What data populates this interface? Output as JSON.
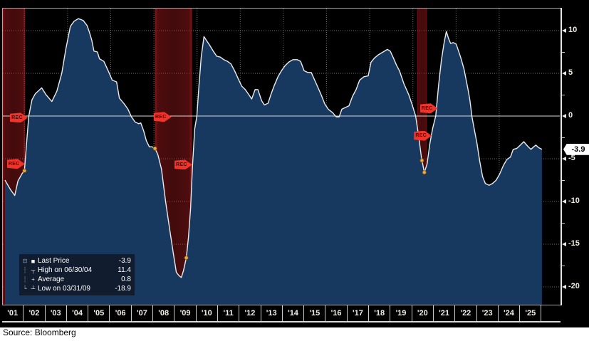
{
  "source_note": "Source: Bloomberg",
  "colors": {
    "background": "#000000",
    "area_fill": "#17395f",
    "price_line": "#ebebeb",
    "zero_line": "#d8d8d8",
    "grid_dotted": "#6f6f6f",
    "frame": "#a8a8a8",
    "axis_line": "#e6e6e6",
    "axis_text": "#f0ece2",
    "recession_band": "#b91e22",
    "event_flag": "#ef342b",
    "event_flag_text": "#4a0303",
    "event_dot": "#eda83e",
    "last_price_tag_bg": "#ffffff",
    "last_price_tag_text": "#000000",
    "legend_bg": "#111b2b",
    "legend_text": "#ffffff"
  },
  "legend": {
    "rows": [
      {
        "tree": "⊟",
        "icon": "square-swatch",
        "glyph": "■",
        "label": "Last Price",
        "value": "-3.9"
      },
      {
        "tree": "┊",
        "icon": "high-marker",
        "glyph": "┬",
        "label": "High on 06/30/04",
        "value": "11.4"
      },
      {
        "tree": "┊",
        "icon": "average-marker",
        "glyph": "+",
        "label": "Average",
        "value": "0.8"
      },
      {
        "tree": "┕",
        "icon": "low-marker",
        "glyph": "┴",
        "label": "Low on 03/31/09",
        "value": "-18.9"
      }
    ]
  },
  "y_axis": {
    "major_ticks": [
      {
        "label": "10",
        "value": 10
      },
      {
        "label": "5",
        "value": 5
      },
      {
        "label": "0",
        "value": 0
      },
      {
        "label": "-5",
        "value": -5
      },
      {
        "label": "-10",
        "value": -10
      },
      {
        "label": "-15",
        "value": -15
      },
      {
        "label": "-20",
        "value": -20
      }
    ],
    "minor_tick_values": [
      7.5,
      2.5,
      -2.5,
      -7.5,
      -12.5,
      -17.5
    ],
    "last_price_tag": "-3.9",
    "last_price_value": -3.9
  },
  "x_axis": {
    "labels": [
      "'01",
      "'02",
      "'03",
      "'04",
      "'05",
      "'06",
      "'07",
      "'08",
      "'09",
      "'10",
      "'11",
      "'12",
      "'13",
      "'14",
      "'15",
      "'16",
      "'17",
      "'18",
      "'19",
      "'20",
      "'21",
      "'22",
      "'23",
      "'24",
      "'25"
    ]
  },
  "chart_data": {
    "type": "area",
    "title": "",
    "x_unit": "year",
    "x_range": [
      2001,
      2026
    ],
    "y_range": [
      -22.2,
      12.7
    ],
    "grid": true,
    "zero_line": true,
    "legend_position": "bottom-left",
    "x": [
      2001.1,
      2001.35,
      2001.55,
      2001.7,
      2001.9,
      2002.0,
      2002.1,
      2002.2,
      2002.35,
      2002.5,
      2002.8,
      2003.0,
      2003.27,
      2003.5,
      2003.73,
      2003.93,
      2004.13,
      2004.3,
      2004.5,
      2004.72,
      2004.9,
      2005.0,
      2005.12,
      2005.22,
      2005.38,
      2005.48,
      2005.68,
      2005.88,
      2006.07,
      2006.27,
      2006.4,
      2006.63,
      2006.8,
      2006.96,
      2007.13,
      2007.29,
      2007.39,
      2007.52,
      2007.65,
      2007.79,
      2007.92,
      2008.05,
      2008.18,
      2008.35,
      2008.54,
      2008.74,
      2008.9,
      2009.04,
      2009.17,
      2009.27,
      2009.37,
      2009.5,
      2009.6,
      2009.7,
      2009.79,
      2009.89,
      2009.99,
      2010.09,
      2010.19,
      2010.32,
      2010.45,
      2010.58,
      2010.75,
      2010.91,
      2011.08,
      2011.24,
      2011.41,
      2011.57,
      2011.74,
      2011.9,
      2012.07,
      2012.23,
      2012.4,
      2012.53,
      2012.69,
      2012.82,
      2012.99,
      2013.12,
      2013.29,
      2013.42,
      2013.58,
      2013.75,
      2013.91,
      2014.08,
      2014.24,
      2014.44,
      2014.64,
      2014.8,
      2014.96,
      2015.13,
      2015.29,
      2015.52,
      2015.75,
      2015.92,
      2016.08,
      2016.28,
      2016.45,
      2016.58,
      2016.71,
      2016.87,
      2017.04,
      2017.2,
      2017.37,
      2017.53,
      2017.73,
      2017.93,
      2018.06,
      2018.22,
      2018.42,
      2018.62,
      2018.82,
      2018.95,
      2019.08,
      2019.25,
      2019.38,
      2019.58,
      2019.81,
      2019.97,
      2020.13,
      2020.27,
      2020.4,
      2020.53,
      2020.66,
      2020.79,
      2020.92,
      2021.06,
      2021.19,
      2021.32,
      2021.45,
      2021.55,
      2021.65,
      2021.75,
      2021.88,
      2022.01,
      2022.21,
      2022.37,
      2022.54,
      2022.64,
      2022.74,
      2022.87,
      2022.97,
      2023.1,
      2023.23,
      2023.36,
      2023.53,
      2023.69,
      2023.86,
      2024.02,
      2024.19,
      2024.35,
      2024.52,
      2024.65,
      2024.81,
      2024.98,
      2025.14,
      2025.31,
      2025.47,
      2025.6,
      2025.7,
      2025.83,
      2025.98
    ],
    "values": [
      -7.5,
      -8.6,
      -9.3,
      -7.6,
      -6.7,
      -6.4,
      -3.2,
      0.0,
      1.9,
      2.6,
      3.3,
      2.5,
      1.7,
      2.9,
      5.0,
      8.0,
      10.5,
      11.1,
      11.4,
      11.2,
      10.6,
      9.9,
      8.9,
      7.6,
      7.5,
      6.7,
      6.4,
      5.3,
      4.2,
      4.0,
      2.1,
      1.4,
      0.8,
      -0.1,
      -0.7,
      -0.9,
      -0.8,
      -1.7,
      -2.9,
      -3.6,
      -3.6,
      -3.8,
      -4.5,
      -6.2,
      -10.0,
      -13.4,
      -16.1,
      -18.3,
      -18.7,
      -18.9,
      -18.1,
      -16.6,
      -14.2,
      -10.8,
      -5.8,
      -1.5,
      0.0,
      3.6,
      6.9,
      9.3,
      8.8,
      8.3,
      7.6,
      7.0,
      6.9,
      6.6,
      6.4,
      6.1,
      5.3,
      4.4,
      3.5,
      3.1,
      2.5,
      2.0,
      3.1,
      3.1,
      1.8,
      1.3,
      1.5,
      2.5,
      3.6,
      4.6,
      5.3,
      5.9,
      6.3,
      6.6,
      6.6,
      6.4,
      5.3,
      5.1,
      5.1,
      3.8,
      2.5,
      1.4,
      0.8,
      0.4,
      -0.1,
      -0.1,
      0.8,
      1.0,
      1.2,
      2.3,
      3.1,
      4.2,
      4.6,
      4.7,
      6.3,
      6.8,
      7.2,
      7.5,
      7.8,
      7.6,
      6.9,
      5.9,
      5.3,
      3.8,
      2.5,
      1.3,
      0.0,
      -2.4,
      -4.9,
      -6.6,
      -5.6,
      -3.2,
      -1.4,
      0.0,
      3.6,
      6.5,
      8.6,
      9.9,
      9.1,
      8.5,
      8.6,
      8.4,
      6.9,
      5.5,
      3.3,
      1.9,
      -0.1,
      -1.9,
      -3.2,
      -5.3,
      -7.1,
      -7.9,
      -8.1,
      -7.9,
      -7.5,
      -6.8,
      -5.8,
      -5.1,
      -4.8,
      -3.9,
      -3.8,
      -3.4,
      -3.0,
      -3.5,
      -3.9,
      -3.6,
      -3.4,
      -3.7,
      -3.9
    ],
    "recession_bands": [
      [
        2001.0,
        2002.02
      ],
      [
        2008.05,
        2009.76
      ],
      [
        2020.2,
        2020.65
      ]
    ],
    "event_flags": [
      {
        "label": "REC",
        "t": 2001.66,
        "v": -0.2
      },
      {
        "label": "REC",
        "t": 2001.52,
        "v": -5.6
      },
      {
        "label": "REC",
        "t": 2008.32,
        "v": -0.1
      },
      {
        "label": "REC",
        "t": 2009.28,
        "v": -5.7
      },
      {
        "label": "REC",
        "t": 2020.66,
        "v": 0.9
      },
      {
        "label": "REC",
        "t": 2020.38,
        "v": -2.3
      }
    ],
    "event_dots": [
      [
        2002.0,
        -6.4
      ],
      [
        2008.05,
        -3.8
      ],
      [
        2009.5,
        -16.6
      ],
      [
        2020.42,
        -5.2
      ],
      [
        2020.53,
        -6.6
      ]
    ],
    "stats": {
      "last_price": -3.9,
      "high": 11.4,
      "high_date": "06/30/04",
      "average": 0.8,
      "low": -18.9,
      "low_date": "03/31/09"
    }
  }
}
